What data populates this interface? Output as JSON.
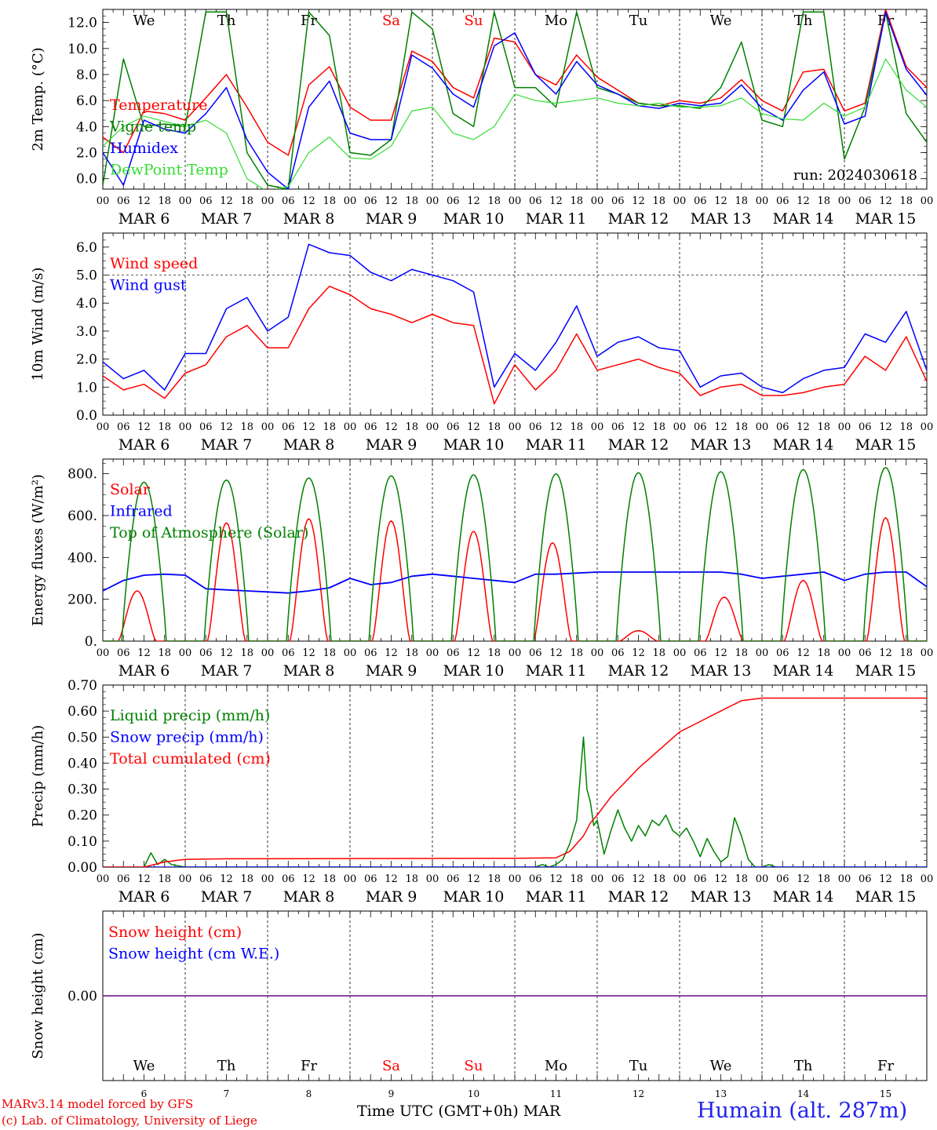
{
  "footer": {
    "credit_line1": "MARv3.14 model forced by GFS",
    "credit_line2": "(c) Lab. of Climatology, University of Liege",
    "x_axis_title": "Time UTC (GMT+0h) MAR",
    "station": "Humain (alt. 287m)"
  },
  "colors": {
    "red": "#ff0000",
    "blue": "#0000ff",
    "green": "#008000",
    "lightgreen": "#33dd33",
    "purple": "#7a2a9a",
    "weekend": "#ff0000"
  },
  "chart_data": [
    {
      "type": "line",
      "ylabel": "2m Temp. (°C)",
      "ylim": [
        -0.8,
        13.0
      ],
      "yticks": [
        "0.0",
        "2.0",
        "4.0",
        "6.0",
        "8.0",
        "10.0",
        "12.0"
      ],
      "yticks_values": [
        0,
        2,
        4,
        6,
        8,
        10,
        12
      ],
      "annotation": "run: 2024030618",
      "day_names": [
        "We",
        "Th",
        "Fr",
        "Sa",
        "Su",
        "Mo",
        "Tu",
        "We",
        "Th",
        "Fr"
      ],
      "hour_ticks": [
        "00",
        "06",
        "12",
        "18"
      ],
      "date_labels": [
        "MAR 6",
        "MAR 7",
        "MAR 8",
        "MAR 9",
        "MAR 10",
        "MAR 11",
        "MAR 12",
        "MAR 13",
        "MAR 14",
        "MAR 15"
      ],
      "x_unit": "hours since 2024-03-06 00 UTC",
      "series": [
        {
          "name": "Temperature",
          "color": "red",
          "x": [
            0,
            6,
            12,
            18,
            24,
            30,
            36,
            42,
            48,
            54,
            60,
            66,
            72,
            78,
            84,
            90,
            96,
            102,
            108,
            114,
            120,
            126,
            132,
            138,
            144,
            150,
            156,
            162,
            168,
            174,
            180,
            186,
            192,
            198,
            204,
            210,
            216,
            222,
            228,
            234,
            240
          ],
          "values": [
            3.2,
            2.0,
            5.2,
            5.0,
            4.5,
            6.2,
            8.0,
            5.5,
            2.8,
            1.8,
            7.2,
            8.6,
            5.5,
            4.5,
            4.5,
            9.8,
            9.0,
            7.0,
            6.2,
            10.8,
            10.5,
            8.0,
            7.2,
            9.5,
            7.8,
            6.8,
            5.8,
            5.6,
            6.0,
            5.8,
            6.2,
            7.6,
            6.0,
            5.2,
            8.2,
            8.4,
            5.2,
            5.8,
            13.0,
            8.6,
            7.0
          ]
        },
        {
          "name": "Vigne temp",
          "color": "green",
          "x": [
            0,
            6,
            12,
            18,
            24,
            30,
            36,
            42,
            48,
            54,
            60,
            66,
            72,
            78,
            84,
            90,
            96,
            102,
            108,
            114,
            120,
            126,
            132,
            138,
            144,
            150,
            156,
            162,
            168,
            174,
            180,
            186,
            192,
            198,
            204,
            210,
            216,
            222,
            228,
            234,
            240
          ],
          "values": [
            -0.5,
            9.2,
            4.0,
            4.2,
            4.0,
            12.8,
            12.8,
            2.0,
            -0.5,
            -0.8,
            12.8,
            11.0,
            2.0,
            1.8,
            3.0,
            12.8,
            11.5,
            5.0,
            4.0,
            12.8,
            7.0,
            7.0,
            5.5,
            12.8,
            7.0,
            6.5,
            5.8,
            5.6,
            5.6,
            5.4,
            7.0,
            10.5,
            4.5,
            4.0,
            12.8,
            12.8,
            1.5,
            5.5,
            12.8,
            5.0,
            2.8
          ]
        },
        {
          "name": "Humidex",
          "color": "blue",
          "x": [
            0,
            6,
            12,
            18,
            24,
            30,
            36,
            42,
            48,
            54,
            60,
            66,
            72,
            78,
            84,
            90,
            96,
            102,
            108,
            114,
            120,
            126,
            132,
            138,
            144,
            150,
            156,
            162,
            168,
            174,
            180,
            186,
            192,
            198,
            204,
            210,
            216,
            222,
            228,
            234,
            240
          ],
          "values": [
            2.0,
            -0.5,
            4.5,
            3.8,
            3.5,
            5.0,
            7.0,
            3.0,
            0.5,
            -0.8,
            5.5,
            7.5,
            3.5,
            3.0,
            3.0,
            9.5,
            8.5,
            6.5,
            5.5,
            10.2,
            11.2,
            8.0,
            6.5,
            9.0,
            7.2,
            6.5,
            5.6,
            5.4,
            5.8,
            5.6,
            5.8,
            7.2,
            5.4,
            4.5,
            6.8,
            8.2,
            4.2,
            4.8,
            12.8,
            8.4,
            6.4
          ]
        },
        {
          "name": "DewPoint Temp",
          "color": "lightgreen",
          "x": [
            0,
            6,
            12,
            18,
            24,
            30,
            36,
            42,
            48,
            54,
            60,
            66,
            72,
            78,
            84,
            90,
            96,
            102,
            108,
            114,
            120,
            126,
            132,
            138,
            144,
            150,
            156,
            162,
            168,
            174,
            180,
            186,
            192,
            198,
            204,
            210,
            216,
            222,
            228,
            234,
            240
          ],
          "values": [
            2.5,
            4.0,
            4.8,
            4.4,
            4.0,
            4.5,
            3.5,
            0.0,
            -1.0,
            -0.6,
            2.0,
            3.2,
            1.6,
            1.5,
            2.5,
            5.2,
            5.5,
            3.5,
            3.0,
            4.0,
            6.5,
            6.0,
            5.8,
            6.0,
            6.2,
            5.8,
            5.6,
            5.8,
            5.5,
            5.5,
            5.6,
            6.2,
            5.0,
            4.6,
            4.5,
            5.8,
            4.8,
            5.5,
            9.2,
            6.8,
            5.5
          ]
        }
      ]
    },
    {
      "type": "line",
      "ylabel": "10m Wind (m/s)",
      "ylim": [
        0.0,
        6.5
      ],
      "yticks": [
        "0.0",
        "1.0",
        "2.0",
        "3.0",
        "4.0",
        "5.0",
        "6.0"
      ],
      "yticks_values": [
        0,
        1,
        2,
        3,
        4,
        5,
        6
      ],
      "dashed_reference": 5.0,
      "hour_ticks": [
        "00",
        "06",
        "12",
        "18"
      ],
      "date_labels": [
        "MAR 6",
        "MAR 7",
        "MAR 8",
        "MAR 9",
        "MAR 10",
        "MAR 11",
        "MAR 12",
        "MAR 13",
        "MAR 14",
        "MAR 15"
      ],
      "series": [
        {
          "name": "Wind speed",
          "color": "red",
          "x": [
            0,
            6,
            12,
            18,
            24,
            30,
            36,
            42,
            48,
            54,
            60,
            66,
            72,
            78,
            84,
            90,
            96,
            102,
            108,
            114,
            120,
            126,
            132,
            138,
            144,
            150,
            156,
            162,
            168,
            174,
            180,
            186,
            192,
            198,
            204,
            210,
            216,
            222,
            228,
            234,
            240
          ],
          "values": [
            1.4,
            0.9,
            1.1,
            0.6,
            1.5,
            1.8,
            2.8,
            3.2,
            2.4,
            2.4,
            3.8,
            4.6,
            4.3,
            3.8,
            3.6,
            3.3,
            3.6,
            3.3,
            3.2,
            0.4,
            1.8,
            0.9,
            1.6,
            2.9,
            1.6,
            1.8,
            2.0,
            1.7,
            1.5,
            0.7,
            1.0,
            1.1,
            0.7,
            0.7,
            0.8,
            1.0,
            1.1,
            2.1,
            1.6,
            2.8,
            1.2
          ]
        },
        {
          "name": "Wind gust",
          "color": "blue",
          "x": [
            0,
            6,
            12,
            18,
            24,
            30,
            36,
            42,
            48,
            54,
            60,
            66,
            72,
            78,
            84,
            90,
            96,
            102,
            108,
            114,
            120,
            126,
            132,
            138,
            144,
            150,
            156,
            162,
            168,
            174,
            180,
            186,
            192,
            198,
            204,
            210,
            216,
            222,
            228,
            234,
            240
          ],
          "values": [
            1.9,
            1.3,
            1.6,
            0.9,
            2.2,
            2.2,
            3.8,
            4.2,
            3.0,
            3.5,
            6.1,
            5.8,
            5.7,
            5.1,
            4.8,
            5.2,
            5.0,
            4.8,
            4.4,
            1.0,
            2.2,
            1.6,
            2.6,
            3.9,
            2.1,
            2.6,
            2.8,
            2.4,
            2.3,
            1.0,
            1.4,
            1.5,
            1.0,
            0.8,
            1.3,
            1.6,
            1.7,
            2.9,
            2.6,
            3.7,
            1.6
          ]
        }
      ]
    },
    {
      "type": "line",
      "ylabel": "Energy fluxes (W/m²)",
      "ylim": [
        0,
        870
      ],
      "yticks": [
        "0.",
        "200.",
        "400.",
        "600.",
        "800."
      ],
      "yticks_values": [
        0,
        200,
        400,
        600,
        800
      ],
      "hour_ticks": [
        "00",
        "06",
        "12",
        "18"
      ],
      "date_labels": [
        "MAR 6",
        "MAR 7",
        "MAR 8",
        "MAR 9",
        "MAR 10",
        "MAR 11",
        "MAR 12",
        "MAR 13",
        "MAR 14",
        "MAR 15"
      ],
      "series": [
        {
          "name": "Solar",
          "color": "red",
          "peak_hour_utc": [
            10,
            12,
            12,
            12,
            12,
            11,
            12,
            13,
            12,
            12
          ],
          "values": [
            240,
            565,
            585,
            575,
            525,
            470,
            50,
            210,
            290,
            590
          ]
        },
        {
          "name": "Infrared",
          "color": "blue",
          "x": [
            0,
            6,
            12,
            18,
            24,
            30,
            36,
            42,
            48,
            54,
            60,
            66,
            72,
            78,
            84,
            90,
            96,
            102,
            108,
            114,
            120,
            126,
            132,
            138,
            144,
            150,
            156,
            162,
            168,
            174,
            180,
            186,
            192,
            198,
            204,
            210,
            216,
            222,
            228,
            234,
            240
          ],
          "values": [
            240,
            290,
            315,
            320,
            315,
            250,
            245,
            240,
            235,
            230,
            240,
            255,
            300,
            270,
            280,
            310,
            320,
            310,
            300,
            290,
            280,
            320,
            320,
            325,
            330,
            330,
            330,
            330,
            330,
            330,
            330,
            320,
            300,
            310,
            320,
            330,
            290,
            320,
            330,
            330,
            260
          ]
        },
        {
          "name": "Top of Atmosphere (Solar)",
          "color": "green",
          "peak_hour_utc": [
            12,
            12,
            12,
            12,
            12,
            12,
            12,
            12,
            12,
            12
          ],
          "values": [
            760,
            770,
            780,
            790,
            795,
            800,
            805,
            810,
            820,
            830
          ]
        }
      ]
    },
    {
      "type": "line",
      "ylabel": "Precip (mm/h)",
      "ylim": [
        0.0,
        0.7
      ],
      "yticks": [
        "0.00",
        "0.10",
        "0.20",
        "0.30",
        "0.40",
        "0.50",
        "0.60",
        "0.70"
      ],
      "yticks_values": [
        0,
        0.1,
        0.2,
        0.3,
        0.4,
        0.5,
        0.6,
        0.7
      ],
      "hour_ticks": [
        "00",
        "06",
        "12",
        "18"
      ],
      "date_labels": [
        "MAR 6",
        "MAR 7",
        "MAR 8",
        "MAR 9",
        "MAR 10",
        "MAR 11",
        "MAR 12",
        "MAR 13",
        "MAR 14",
        "MAR 15"
      ],
      "series": [
        {
          "name": "Liquid precip (mm/h)",
          "color": "green",
          "x": [
            0,
            12,
            14,
            16,
            18,
            20,
            24,
            126,
            128,
            130,
            132,
            134,
            136,
            138,
            140,
            141,
            142,
            143,
            144,
            146,
            148,
            150,
            152,
            154,
            156,
            158,
            160,
            162,
            164,
            166,
            168,
            170,
            172,
            174,
            176,
            178,
            180,
            182,
            184,
            186,
            188,
            190,
            192,
            194,
            196,
            198,
            200,
            202,
            204,
            240
          ],
          "values": [
            0,
            0,
            0.055,
            0.01,
            0.03,
            0.01,
            0,
            0,
            0.01,
            0,
            0.01,
            0.03,
            0.09,
            0.18,
            0.5,
            0.3,
            0.25,
            0.16,
            0.18,
            0.05,
            0.14,
            0.22,
            0.15,
            0.1,
            0.16,
            0.12,
            0.18,
            0.16,
            0.2,
            0.14,
            0.12,
            0.15,
            0.1,
            0.04,
            0.11,
            0.06,
            0.02,
            0.04,
            0.19,
            0.12,
            0.03,
            0,
            0,
            0.01,
            0,
            0,
            0,
            0,
            0,
            0
          ]
        },
        {
          "name": "Snow precip (mm/h)",
          "color": "blue",
          "x": [
            0,
            240
          ],
          "values": [
            0,
            0
          ]
        },
        {
          "name": "Total cumulated (cm)",
          "color": "red",
          "x": [
            0,
            12,
            18,
            24,
            36,
            120,
            132,
            136,
            140,
            142,
            144,
            148,
            156,
            168,
            180,
            186,
            192,
            240
          ],
          "values": [
            0,
            0,
            0.02,
            0.03,
            0.032,
            0.034,
            0.036,
            0.06,
            0.12,
            0.17,
            0.2,
            0.27,
            0.38,
            0.52,
            0.6,
            0.64,
            0.65,
            0.65
          ]
        }
      ]
    },
    {
      "type": "line",
      "ylabel": "Snow height (cm)",
      "yticks": [
        "0.00"
      ],
      "yticks_values": [
        0
      ],
      "day_names": [
        "We",
        "Th",
        "Fr",
        "Sa",
        "Su",
        "Mo",
        "Tu",
        "We",
        "Th",
        "Fr"
      ],
      "day_numbers": [
        "6",
        "7",
        "8",
        "9",
        "10",
        "11",
        "12",
        "13",
        "14",
        "15"
      ],
      "series": [
        {
          "name": "Snow height (cm)",
          "color": "red",
          "x": [
            0,
            240
          ],
          "values": [
            0,
            0
          ]
        },
        {
          "name": "Snow height (cm W.E.)",
          "color": "blue",
          "x": [
            0,
            240
          ],
          "values": [
            0,
            0
          ]
        }
      ]
    }
  ]
}
